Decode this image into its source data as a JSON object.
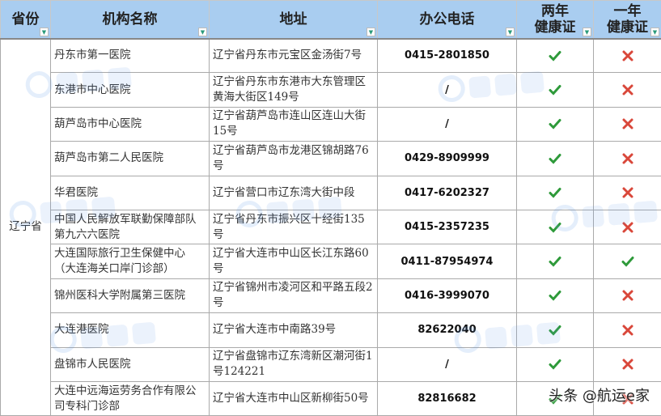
{
  "headers": [
    "省份",
    "机构名称",
    "地址",
    "办公电话",
    "两年\n健康证",
    "一年\n健康证"
  ],
  "province": "辽宁省",
  "rows": [
    {
      "name": "丹东市第一医院",
      "addr": "辽宁省丹东市元宝区金汤街7号",
      "tel": "0415-2801850",
      "two": "yes",
      "one": "no"
    },
    {
      "name": "东港市中心医院",
      "addr": "辽宁省丹东市东港市大东管理区黄海大街区149号",
      "tel": "/",
      "two": "yes",
      "one": "no"
    },
    {
      "name": "葫芦岛市中心医院",
      "addr": "辽宁省葫芦岛市连山区连山大街15号",
      "tel": "/",
      "two": "yes",
      "one": "no"
    },
    {
      "name": "葫芦岛市第二人民医院",
      "addr": "辽宁省葫芦岛市龙港区锦胡路76号",
      "tel": "0429-8909999",
      "two": "yes",
      "one": "no"
    },
    {
      "name": "华君医院",
      "addr": "辽宁省营口市辽东湾大街中段",
      "tel": "0417-6202327",
      "two": "yes",
      "one": "no"
    },
    {
      "name": "中国人民解放军联勤保障部队第九六六医院",
      "addr": "辽宁省丹东市振兴区十经街135号",
      "tel": "0415-2357235",
      "two": "yes",
      "one": "no"
    },
    {
      "name": "大连国际旅行卫生保健中心（大连海关口岸门诊部）",
      "addr": "辽宁省大连市中山区长江东路60号",
      "tel": "0411-87954974",
      "two": "yes",
      "one": "yes"
    },
    {
      "name": "锦州医科大学附属第三医院",
      "addr": "辽宁省锦州市凌河区和平路五段2号",
      "tel": "0416-3999070",
      "two": "yes",
      "one": "no"
    },
    {
      "name": "大连港医院",
      "addr": "辽宁省大连市中南路39号",
      "tel": "82622040",
      "two": "yes",
      "one": "no"
    },
    {
      "name": "盘锦市人民医院",
      "addr": "辽宁省盘锦市辽东湾新区潮河街1号124221",
      "tel": "/",
      "two": "yes",
      "one": "no"
    },
    {
      "name": "大连中远海运劳务合作有限公司专科门诊部",
      "addr": "辽宁省大连市中山区新柳街50号",
      "tel": "82816682",
      "two": "yes",
      "one": "no"
    }
  ],
  "icons": {
    "yes": "check-icon",
    "no": "cross-icon"
  },
  "colors": {
    "header": "#a9cdf0",
    "check": "#2e9a3a",
    "cross": "#d9473a"
  },
  "watermark": "航运e家",
  "credit": "头条 @航运e家"
}
